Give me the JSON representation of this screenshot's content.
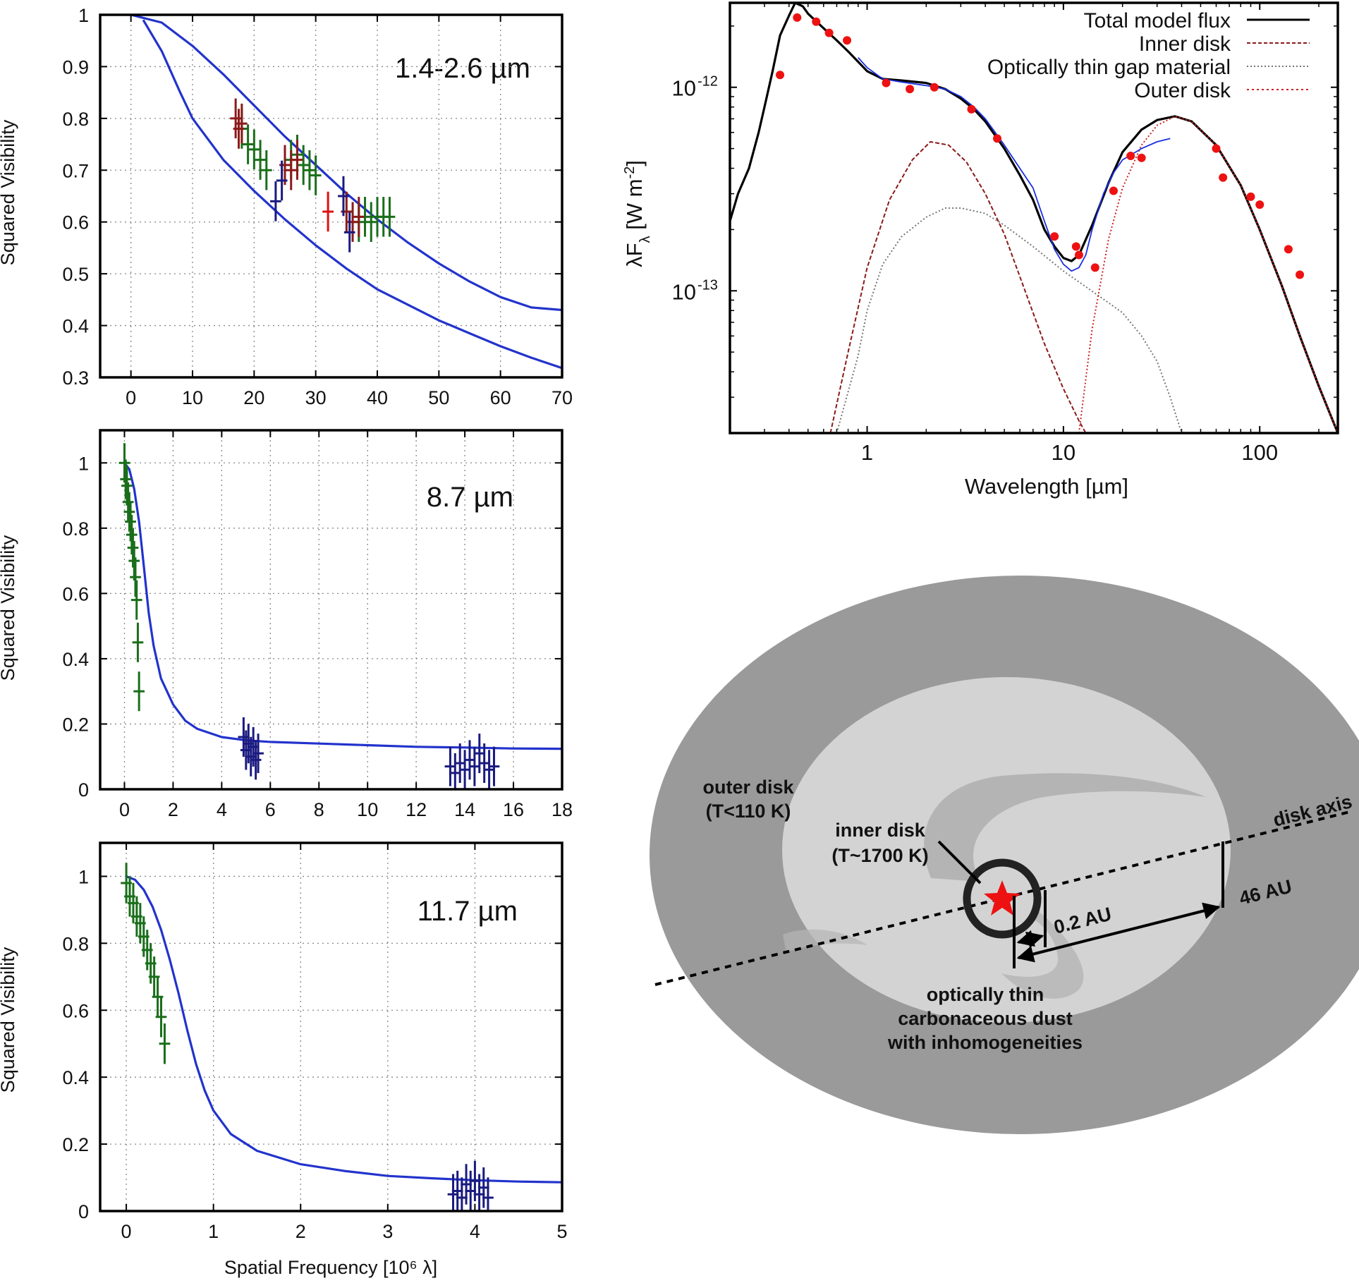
{
  "chart_data": [
    {
      "id": "vis_nir",
      "type": "scatter",
      "title": "1.4-2.6 µm",
      "ylabel": "Squared Visibility",
      "xlabel": "",
      "xlim": [
        -5,
        70
      ],
      "ylim": [
        0.3,
        1.0
      ],
      "xticks": [
        0,
        10,
        20,
        30,
        40,
        50,
        60,
        70
      ],
      "yticks": [
        0.3,
        0.4,
        0.5,
        0.6,
        0.7,
        0.8,
        0.9,
        1
      ],
      "grid": true,
      "series": [
        {
          "name": "model upper",
          "kind": "line",
          "color": "#2233cc",
          "x": [
            0,
            5,
            10,
            15,
            20,
            25,
            30,
            35,
            40,
            45,
            50,
            55,
            60,
            65,
            70
          ],
          "y": [
            1.0,
            0.985,
            0.94,
            0.885,
            0.825,
            0.765,
            0.71,
            0.655,
            0.605,
            0.56,
            0.52,
            0.485,
            0.455,
            0.435,
            0.43
          ]
        },
        {
          "name": "model lower",
          "kind": "line",
          "color": "#2233cc",
          "x": [
            2,
            5,
            8,
            10,
            15,
            20,
            25,
            30,
            35,
            40,
            45,
            50,
            55,
            60,
            65,
            70
          ],
          "y": [
            0.99,
            0.93,
            0.85,
            0.8,
            0.72,
            0.66,
            0.605,
            0.555,
            0.51,
            0.47,
            0.44,
            0.41,
            0.385,
            0.36,
            0.338,
            0.318
          ]
        },
        {
          "name": "green",
          "kind": "err",
          "color": "#1a6e1a",
          "x": [
            18,
            19,
            20,
            21,
            22,
            26,
            27,
            28,
            29,
            30,
            37,
            38,
            39,
            40,
            41,
            42
          ],
          "y": [
            0.78,
            0.75,
            0.74,
            0.72,
            0.7,
            0.72,
            0.73,
            0.71,
            0.7,
            0.69,
            0.6,
            0.61,
            0.6,
            0.61,
            0.61,
            0.61
          ]
        },
        {
          "name": "darkred",
          "kind": "err",
          "color": "#8b1a1a",
          "x": [
            17,
            17.5,
            18,
            25,
            26,
            27,
            35,
            36,
            37
          ],
          "y": [
            0.8,
            0.78,
            0.79,
            0.71,
            0.7,
            0.72,
            0.62,
            0.6,
            0.61
          ]
        },
        {
          "name": "navy",
          "kind": "err",
          "color": "#1a1a80",
          "x": [
            23.5,
            24.5,
            34.5,
            35.5
          ],
          "y": [
            0.64,
            0.68,
            0.65,
            0.58
          ]
        },
        {
          "name": "red",
          "kind": "err",
          "color": "#e01010",
          "x": [
            32
          ],
          "y": [
            0.62
          ]
        }
      ]
    },
    {
      "id": "vis_87",
      "type": "scatter",
      "title": "8.7 µm",
      "ylabel": "Squared Visibility",
      "xlabel": "",
      "xlim": [
        -1,
        18
      ],
      "ylim": [
        0,
        1.1
      ],
      "xticks": [
        0,
        2,
        4,
        6,
        8,
        10,
        12,
        14,
        16,
        18
      ],
      "yticks": [
        0,
        0.2,
        0.4,
        0.6,
        0.8,
        1
      ],
      "grid": true,
      "series": [
        {
          "name": "model",
          "kind": "line",
          "color": "#2233cc",
          "x": [
            0,
            0.2,
            0.4,
            0.6,
            0.8,
            1.0,
            1.2,
            1.5,
            2,
            2.5,
            3,
            4,
            5,
            6,
            8,
            10,
            12,
            14,
            16,
            18
          ],
          "y": [
            1.0,
            0.98,
            0.92,
            0.82,
            0.68,
            0.54,
            0.44,
            0.34,
            0.26,
            0.21,
            0.185,
            0.16,
            0.15,
            0.145,
            0.14,
            0.135,
            0.13,
            0.128,
            0.125,
            0.124
          ]
        },
        {
          "name": "green",
          "kind": "err",
          "color": "#1a6e1a",
          "x": [
            0,
            0.05,
            0.1,
            0.15,
            0.2,
            0.25,
            0.3,
            0.35,
            0.4,
            0.45,
            0.5,
            0.55,
            0.6
          ],
          "y": [
            1.0,
            0.95,
            0.93,
            0.88,
            0.85,
            0.82,
            0.78,
            0.74,
            0.7,
            0.65,
            0.58,
            0.45,
            0.3
          ]
        },
        {
          "name": "navy",
          "kind": "err",
          "color": "#1a1a80",
          "x": [
            4.9,
            5.0,
            5.1,
            5.2,
            5.3,
            5.4,
            5.5,
            13.4,
            13.6,
            13.8,
            14.0,
            14.2,
            14.4,
            14.6,
            14.8,
            15.0,
            15.2
          ],
          "y": [
            0.16,
            0.12,
            0.14,
            0.1,
            0.13,
            0.09,
            0.11,
            0.07,
            0.05,
            0.08,
            0.06,
            0.09,
            0.07,
            0.11,
            0.08,
            0.06,
            0.07
          ]
        }
      ]
    },
    {
      "id": "vis_117",
      "type": "scatter",
      "title": "11.7 µm",
      "ylabel": "Squared Visibility",
      "xlabel": "Spatial Frequency [10⁶ λ]",
      "xlim": [
        -0.3,
        5
      ],
      "ylim": [
        0,
        1.1
      ],
      "xticks": [
        0,
        1,
        2,
        3,
        4,
        5
      ],
      "yticks": [
        0,
        0.2,
        0.4,
        0.6,
        0.8,
        1
      ],
      "grid": true,
      "series": [
        {
          "name": "model",
          "kind": "line",
          "color": "#2233cc",
          "x": [
            0,
            0.1,
            0.2,
            0.3,
            0.4,
            0.5,
            0.6,
            0.7,
            0.8,
            0.9,
            1.0,
            1.2,
            1.5,
            2,
            2.5,
            3,
            3.5,
            4,
            4.5,
            5
          ],
          "y": [
            1.0,
            0.99,
            0.96,
            0.91,
            0.84,
            0.75,
            0.65,
            0.54,
            0.44,
            0.36,
            0.3,
            0.23,
            0.18,
            0.14,
            0.12,
            0.105,
            0.098,
            0.092,
            0.088,
            0.086
          ]
        },
        {
          "name": "green",
          "kind": "err",
          "color": "#1a6e1a",
          "x": [
            0,
            0.04,
            0.08,
            0.12,
            0.16,
            0.2,
            0.24,
            0.28,
            0.32,
            0.36,
            0.4,
            0.44
          ],
          "y": [
            0.98,
            0.94,
            0.92,
            0.88,
            0.86,
            0.82,
            0.78,
            0.74,
            0.7,
            0.64,
            0.58,
            0.5
          ]
        },
        {
          "name": "navy",
          "kind": "err",
          "color": "#1a1a80",
          "x": [
            3.75,
            3.8,
            3.85,
            3.9,
            3.95,
            4.0,
            4.05,
            4.1,
            4.15
          ],
          "y": [
            0.05,
            0.06,
            0.04,
            0.08,
            0.06,
            0.09,
            0.05,
            0.07,
            0.04
          ]
        }
      ]
    },
    {
      "id": "sed",
      "type": "line",
      "title": "",
      "xscale": "log",
      "yscale": "log",
      "xlabel": "Wavelength [µm]",
      "ylabel": "λF_λ [W m^-2]",
      "xlim": [
        0.2,
        250
      ],
      "ylim": [
        2e-14,
        2.6e-12
      ],
      "xticks": [
        1,
        10,
        100
      ],
      "xticklabels": [
        "1",
        "10",
        "100"
      ],
      "yticks": [
        1e-13,
        1e-12
      ],
      "yticklabels": [
        {
          "base": "10",
          "exp": "-13"
        },
        {
          "base": "10",
          "exp": "-12"
        }
      ],
      "grid": false,
      "legend": {
        "position": "top-right",
        "entries": [
          "Total model flux",
          "Inner disk",
          "Optically thin gap material",
          "Outer disk"
        ]
      },
      "series": [
        {
          "name": "Total model flux",
          "style": "solid",
          "color": "#000000",
          "x": [
            0.2,
            0.22,
            0.25,
            0.28,
            0.3,
            0.33,
            0.36,
            0.4,
            0.43,
            0.47,
            0.5,
            0.6,
            0.7,
            0.8,
            1.0,
            1.2,
            1.5,
            2.0,
            2.5,
            3.0,
            3.5,
            4.0,
            5.0,
            6.0,
            7.0,
            8.0,
            9.0,
            10.0,
            11.0,
            12.0,
            14.0,
            17.0,
            20.0,
            25.0,
            30.0,
            37.0,
            45.0,
            60.0,
            80.0,
            100.0,
            130.0,
            160.0,
            200.0,
            250.0
          ],
          "y": [
            2.2e-13,
            3e-13,
            4e-13,
            6e-13,
            8e-13,
            1.2e-12,
            1.8e-12,
            2.25e-12,
            2.6e-12,
            2.5e-12,
            2.3e-12,
            1.95e-12,
            1.7e-12,
            1.5e-12,
            1.2e-12,
            1.1e-12,
            1.08e-12,
            1.05e-12,
            9.8e-13,
            8.8e-13,
            7.8e-13,
            6.8e-13,
            5e-13,
            3.7e-13,
            2.8e-13,
            2e-13,
            1.65e-13,
            1.45e-13,
            1.4e-13,
            1.5e-13,
            2.1e-13,
            3.4e-13,
            4.8e-13,
            6.2e-13,
            6.9e-13,
            7.2e-13,
            6.8e-13,
            5.2e-13,
            3.3e-13,
            2e-13,
            1.05e-13,
            6e-14,
            3.4e-14,
            2e-14
          ]
        },
        {
          "name": "Inner disk",
          "style": "dashed",
          "color": "#8b1a1a",
          "x": [
            0.65,
            0.8,
            1.0,
            1.3,
            1.7,
            2.1,
            2.6,
            3.2,
            4.0,
            5.0,
            6.5,
            8.0,
            10.0,
            12.0,
            13.0
          ],
          "y": [
            2e-14,
            5e-14,
            1.3e-13,
            2.8e-13,
            4.4e-13,
            5.4e-13,
            5.2e-13,
            4.3e-13,
            3e-13,
            1.9e-13,
            9.5e-14,
            5.5e-14,
            3.3e-14,
            2.3e-14,
            2e-14
          ]
        },
        {
          "name": "Optically thin gap material",
          "style": "dotted",
          "color": "#777777",
          "x": [
            0.7,
            0.9,
            1.0,
            1.2,
            1.5,
            2.0,
            2.5,
            3.0,
            4.0,
            5.0,
            7.0,
            10.0,
            15.0,
            20.0,
            25.0,
            30.0,
            35.0,
            40.0
          ],
          "y": [
            2e-14,
            4.8e-14,
            8e-14,
            1.35e-13,
            1.85e-13,
            2.3e-13,
            2.55e-13,
            2.55e-13,
            2.4e-13,
            2.1e-13,
            1.65e-13,
            1.25e-13,
            9.5e-14,
            7.8e-14,
            6e-14,
            4.5e-14,
            3e-14,
            2e-14
          ]
        },
        {
          "name": "Outer disk",
          "style": "dotted",
          "color": "#cc2222",
          "x": [
            12.0,
            14.0,
            17.0,
            20.0,
            25.0,
            30.0,
            37.0,
            45.0,
            60.0,
            80.0,
            100.0,
            130.0,
            160.0,
            200.0,
            250.0
          ],
          "y": [
            2e-14,
            6.5e-14,
            1.8e-13,
            3.2e-13,
            5.2e-13,
            6.5e-13,
            7.2e-13,
            6.8e-13,
            5.2e-13,
            3.3e-13,
            2e-13,
            1.05e-13,
            6e-14,
            3.4e-14,
            2e-14
          ]
        },
        {
          "name": "Spectrum",
          "style": "solid-thin",
          "color": "#1a2fe0",
          "x": [
            0.9,
            1.0,
            1.2,
            1.5,
            2.0,
            2.5,
            3.0,
            3.5,
            4.0,
            5.0,
            6.0,
            7.0,
            8.0,
            9.0,
            10.0,
            11.0,
            12.0,
            13.0,
            14.0,
            16.0,
            18.0,
            20.0,
            25.0,
            30.0,
            35.0
          ],
          "y": [
            1.4e-12,
            1.25e-12,
            1.1e-12,
            1.06e-12,
            1.02e-12,
            9.8e-13,
            9e-13,
            8e-13,
            7e-13,
            5.2e-13,
            4e-13,
            3.2e-13,
            2.2e-13,
            1.6e-13,
            1.35e-13,
            1.25e-13,
            1.3e-13,
            1.5e-13,
            2e-13,
            3e-13,
            3.8e-13,
            4.4e-13,
            5e-13,
            5.4e-13,
            5.6e-13
          ]
        },
        {
          "name": "Photometry",
          "style": "points",
          "color": "#ee1111",
          "x": [
            0.36,
            0.44,
            0.55,
            0.64,
            0.79,
            1.25,
            1.65,
            2.2,
            3.4,
            4.6,
            9.0,
            11.6,
            12.0,
            14.5,
            18.0,
            22.0,
            25.0,
            60.0,
            65.0,
            90.0,
            100.0,
            140.0,
            160.0
          ],
          "y": [
            1.15e-12,
            2.2e-12,
            2.1e-12,
            1.85e-12,
            1.7e-12,
            1.05e-12,
            9.8e-13,
            1e-12,
            7.8e-13,
            5.6e-13,
            1.85e-13,
            1.65e-13,
            1.5e-13,
            1.3e-13,
            3.1e-13,
            4.6e-13,
            4.5e-13,
            5e-13,
            3.6e-13,
            2.9e-13,
            2.65e-13,
            1.6e-13,
            1.2e-13
          ]
        }
      ]
    }
  ],
  "diagram": {
    "outer_label_1": "outer disk",
    "outer_label_2": "(T<110 K)",
    "inner_label_1": "inner disk",
    "inner_label_2": "(T~1700 K)",
    "axis_label": "disk axis",
    "dist_inner": "0.2 AU",
    "dist_outer": "46 AU",
    "gap_label_1": "optically thin",
    "gap_label_2": "carbonaceous dust",
    "gap_label_3": "with inhomogeneities",
    "colors": {
      "outer": "#9a9a9a",
      "gap": "#d3d3d3",
      "star": "#ee1111"
    }
  }
}
